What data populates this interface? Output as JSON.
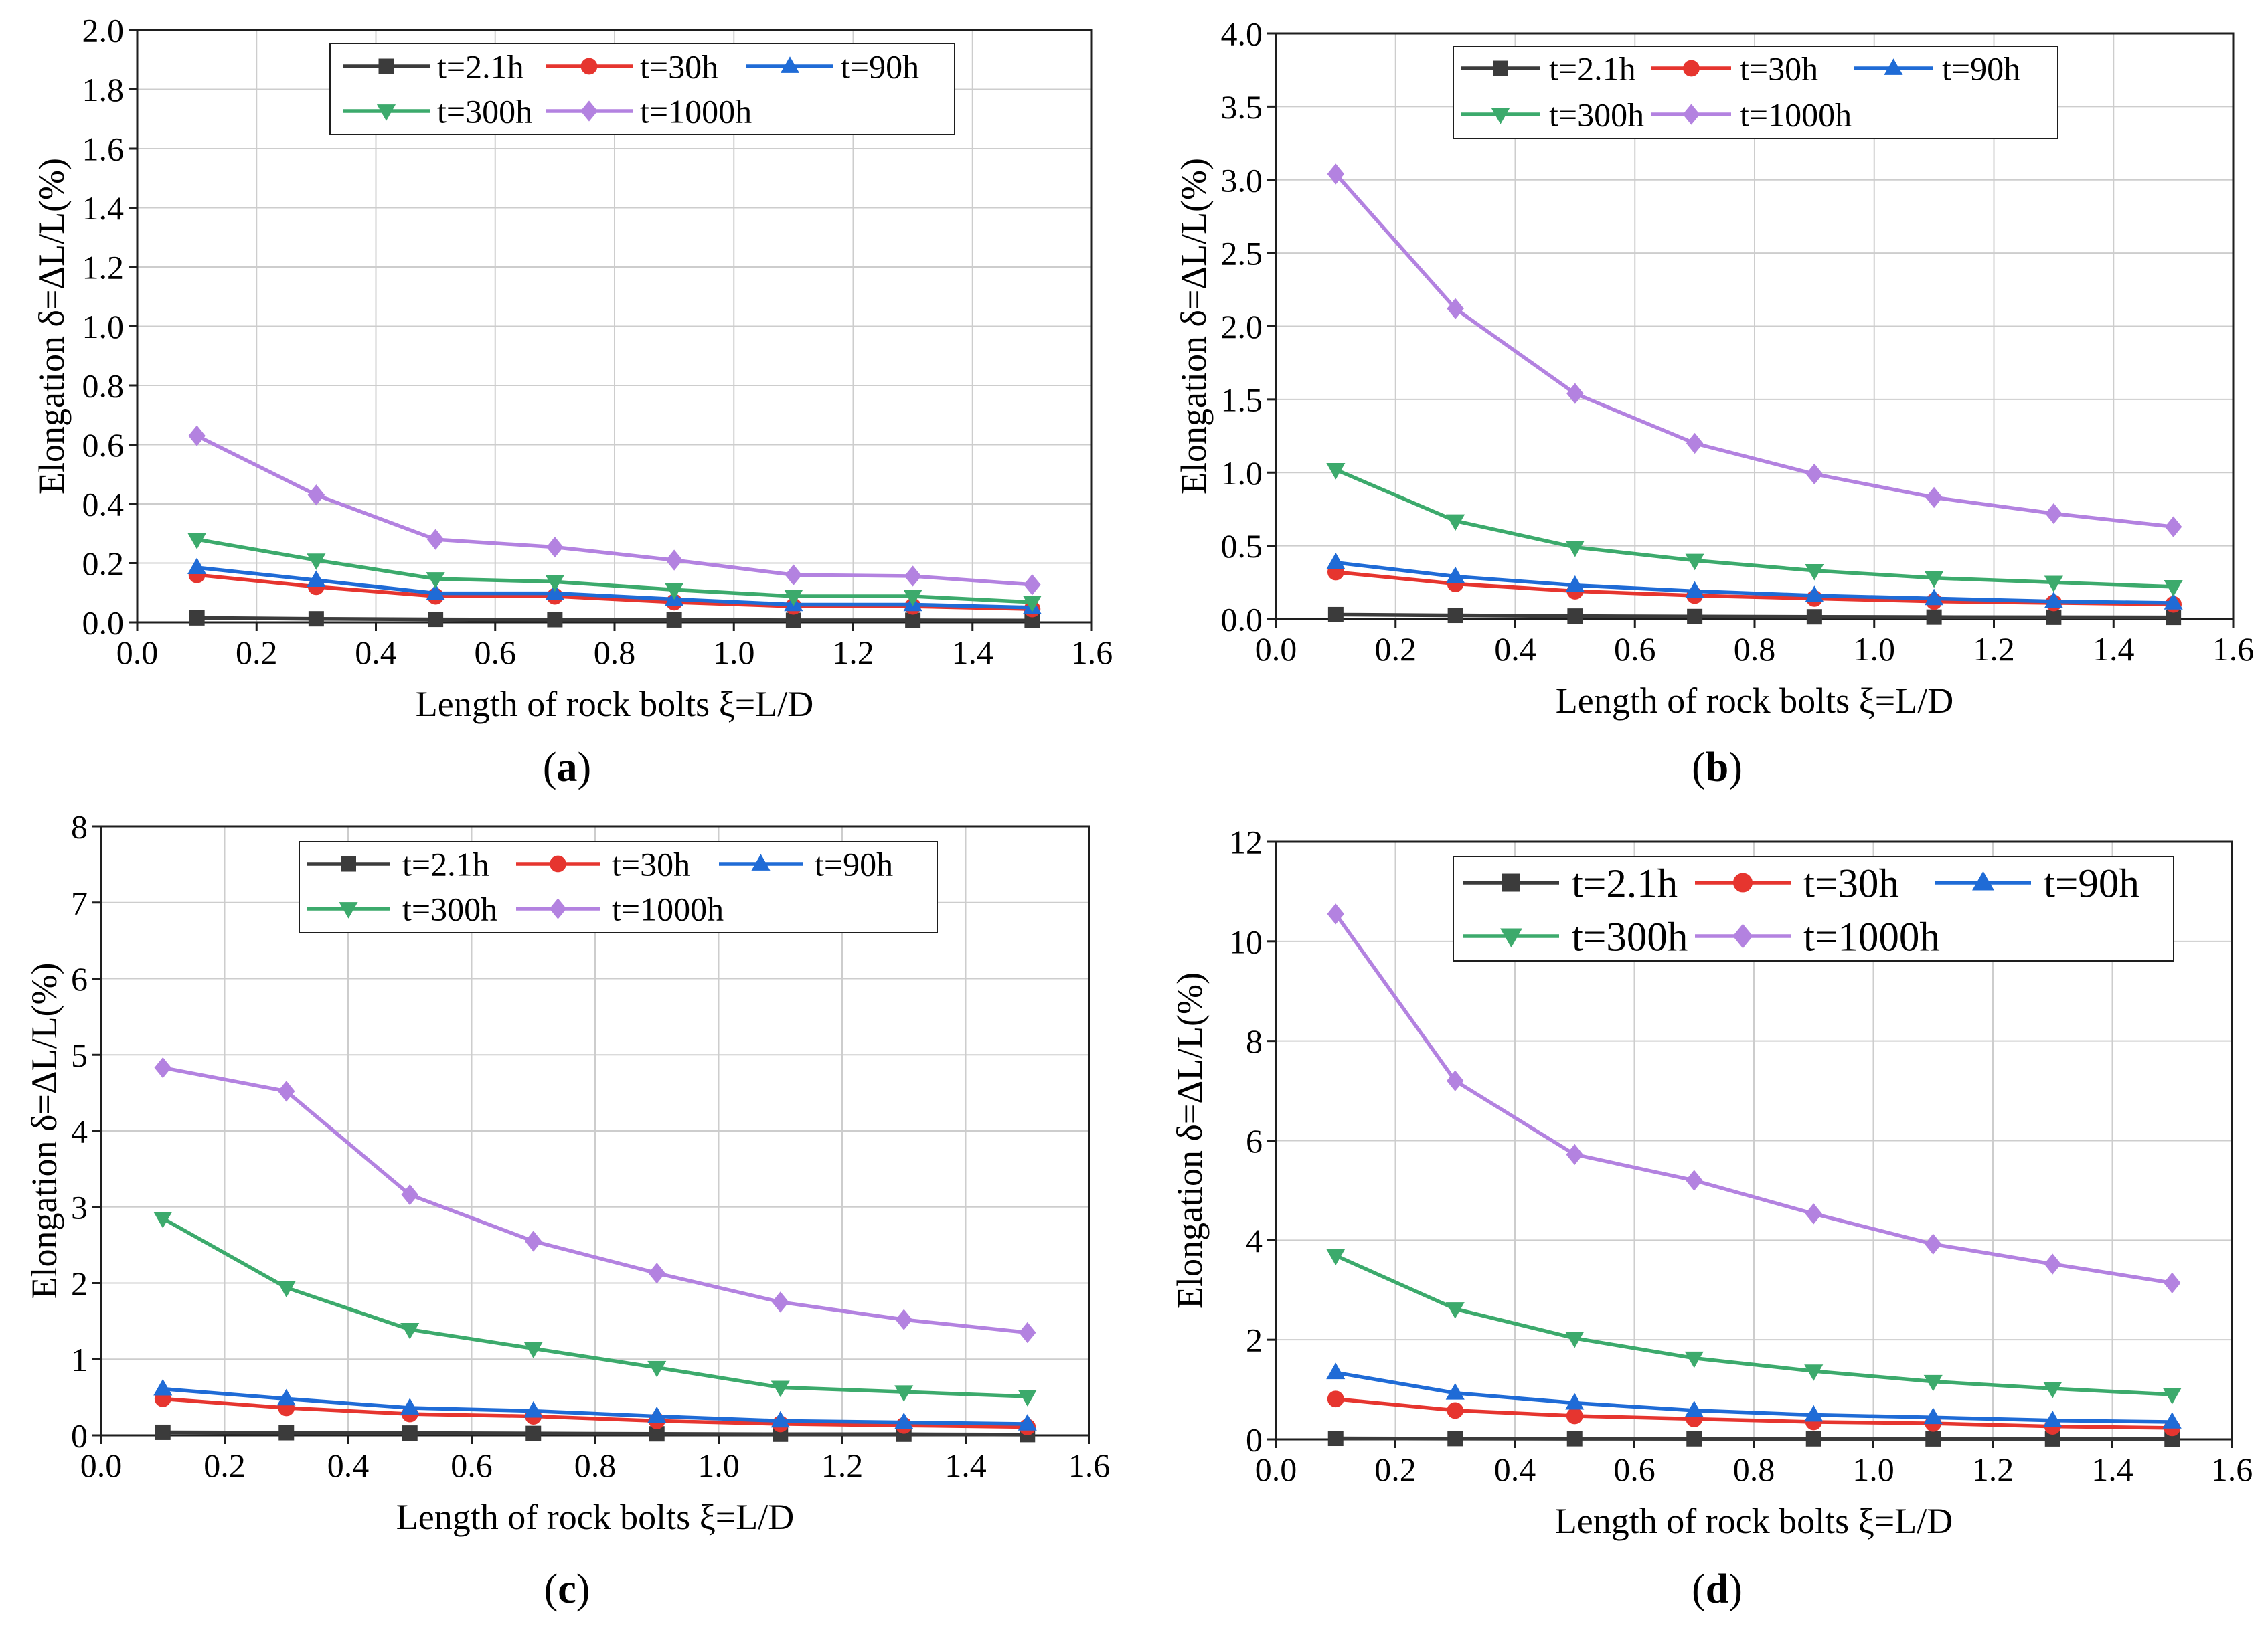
{
  "figure": {
    "background": "#ffffff"
  },
  "chart_data": [
    {
      "type": "line",
      "panel_label": {
        "open": "(",
        "letter": "a",
        "close": ")"
      },
      "xlabel": "Length of rock bolts ξ=L/D",
      "ylabel": "Elongation δ=ΔL/L(%)",
      "xlim": [
        0,
        1.6
      ],
      "ylim": [
        0,
        2.0
      ],
      "xticks": [
        0,
        0.2,
        0.4,
        0.6,
        0.8,
        1.0,
        1.2,
        1.4,
        1.6
      ],
      "xtick_labels": [
        "0.0",
        "0.2",
        "0.4",
        "0.6",
        "0.8",
        "1.0",
        "1.2",
        "1.4",
        "1.6"
      ],
      "yticks": [
        0,
        0.2,
        0.4,
        0.6,
        0.8,
        1.0,
        1.2,
        1.4,
        1.6,
        1.8,
        2.0
      ],
      "ytick_labels": [
        "0.0",
        "0.2",
        "0.4",
        "0.6",
        "0.8",
        "1.0",
        "1.2",
        "1.4",
        "1.6",
        "1.8",
        "2.0"
      ],
      "grid": true,
      "legend_position": "upper center",
      "x": [
        0.1,
        0.3,
        0.5,
        0.7,
        0.9,
        1.1,
        1.3,
        1.5
      ],
      "series": [
        {
          "name": "t=2.1h",
          "color": "#3b3b3b",
          "marker": "square",
          "values": [
            0.015,
            0.012,
            0.01,
            0.009,
            0.008,
            0.007,
            0.007,
            0.006
          ]
        },
        {
          "name": "t=30h",
          "color": "#e6352f",
          "marker": "circle",
          "values": [
            0.16,
            0.12,
            0.088,
            0.088,
            0.068,
            0.054,
            0.054,
            0.045
          ]
        },
        {
          "name": "t=90h",
          "color": "#1f6bd6",
          "marker": "triangle-up",
          "values": [
            0.185,
            0.142,
            0.098,
            0.098,
            0.078,
            0.06,
            0.06,
            0.05
          ]
        },
        {
          "name": "t=300h",
          "color": "#3caa6c",
          "marker": "triangle-down",
          "values": [
            0.28,
            0.21,
            0.147,
            0.137,
            0.11,
            0.088,
            0.088,
            0.068
          ]
        },
        {
          "name": "t=1000h",
          "color": "#b382e0",
          "marker": "diamond",
          "values": [
            0.63,
            0.43,
            0.28,
            0.254,
            0.21,
            0.16,
            0.156,
            0.127
          ]
        }
      ]
    },
    {
      "type": "line",
      "panel_label": {
        "open": "(",
        "letter": "b",
        "close": ")"
      },
      "xlabel": "Length of rock bolts ξ=L/D",
      "ylabel": "Elongation δ=ΔL/L(%)",
      "xlim": [
        0,
        1.6
      ],
      "ylim": [
        0,
        4.0
      ],
      "xticks": [
        0,
        0.2,
        0.4,
        0.6,
        0.8,
        1.0,
        1.2,
        1.4,
        1.6
      ],
      "xtick_labels": [
        "0.0",
        "0.2",
        "0.4",
        "0.6",
        "0.8",
        "1.0",
        "1.2",
        "1.4",
        "1.6"
      ],
      "yticks": [
        0,
        0.5,
        1.0,
        1.5,
        2.0,
        2.5,
        3.0,
        3.5,
        4.0
      ],
      "ytick_labels": [
        "0.0",
        "0.5",
        "1.0",
        "1.5",
        "2.0",
        "2.5",
        "3.0",
        "3.5",
        "4.0"
      ],
      "grid": true,
      "legend_position": "upper center",
      "x": [
        0.1,
        0.3,
        0.5,
        0.7,
        0.9,
        1.1,
        1.3,
        1.5
      ],
      "series": [
        {
          "name": "t=2.1h",
          "color": "#3b3b3b",
          "marker": "square",
          "values": [
            0.03,
            0.025,
            0.02,
            0.017,
            0.015,
            0.013,
            0.012,
            0.011
          ]
        },
        {
          "name": "t=30h",
          "color": "#e6352f",
          "marker": "circle",
          "values": [
            0.32,
            0.24,
            0.19,
            0.16,
            0.14,
            0.12,
            0.11,
            0.1
          ]
        },
        {
          "name": "t=90h",
          "color": "#1f6bd6",
          "marker": "triangle-up",
          "values": [
            0.385,
            0.29,
            0.23,
            0.19,
            0.16,
            0.14,
            0.12,
            0.11
          ]
        },
        {
          "name": "t=300h",
          "color": "#3caa6c",
          "marker": "triangle-down",
          "values": [
            1.02,
            0.67,
            0.49,
            0.4,
            0.33,
            0.28,
            0.25,
            0.22
          ]
        },
        {
          "name": "t=1000h",
          "color": "#b382e0",
          "marker": "diamond",
          "values": [
            3.04,
            2.12,
            1.54,
            1.2,
            0.99,
            0.83,
            0.72,
            0.63
          ]
        }
      ]
    },
    {
      "type": "line",
      "panel_label": {
        "open": "(",
        "letter": "c",
        "close": ")"
      },
      "xlabel": "Length of rock bolts ξ=L/D",
      "ylabel": "Elongation δ=ΔL/L(%)",
      "xlim": [
        0,
        1.6
      ],
      "ylim": [
        0,
        8
      ],
      "xticks": [
        0,
        0.2,
        0.4,
        0.6,
        0.8,
        1.0,
        1.2,
        1.4,
        1.6
      ],
      "xtick_labels": [
        "0.0",
        "0.2",
        "0.4",
        "0.6",
        "0.8",
        "1.0",
        "1.2",
        "1.4",
        "1.6"
      ],
      "yticks": [
        0,
        1,
        2,
        3,
        4,
        5,
        6,
        7,
        8
      ],
      "ytick_labels": [
        "0",
        "1",
        "2",
        "3",
        "4",
        "5",
        "6",
        "7",
        "8"
      ],
      "grid": true,
      "legend_position": "upper center",
      "x": [
        0.1,
        0.3,
        0.5,
        0.7,
        0.9,
        1.1,
        1.3,
        1.5
      ],
      "series": [
        {
          "name": "t=2.1h",
          "color": "#3b3b3b",
          "marker": "square",
          "values": [
            0.04,
            0.035,
            0.03,
            0.025,
            0.02,
            0.015,
            0.015,
            0.01
          ]
        },
        {
          "name": "t=30h",
          "color": "#e6352f",
          "marker": "circle",
          "values": [
            0.48,
            0.36,
            0.28,
            0.25,
            0.19,
            0.15,
            0.13,
            0.11
          ]
        },
        {
          "name": "t=90h",
          "color": "#1f6bd6",
          "marker": "triangle-up",
          "values": [
            0.61,
            0.48,
            0.36,
            0.32,
            0.25,
            0.19,
            0.17,
            0.15
          ]
        },
        {
          "name": "t=300h",
          "color": "#3caa6c",
          "marker": "triangle-down",
          "values": [
            2.85,
            1.94,
            1.39,
            1.14,
            0.89,
            0.63,
            0.57,
            0.51
          ]
        },
        {
          "name": "t=1000h",
          "color": "#b382e0",
          "marker": "diamond",
          "values": [
            4.83,
            4.52,
            3.16,
            2.55,
            2.13,
            1.75,
            1.52,
            1.35
          ]
        }
      ]
    },
    {
      "type": "line",
      "panel_label": {
        "open": "(",
        "letter": "d",
        "close": ")"
      },
      "xlabel": "Length of rock bolts ξ=L/D",
      "ylabel": "Elongation δ=ΔL/L(%)",
      "xlim": [
        0,
        1.6
      ],
      "ylim": [
        0,
        12
      ],
      "xticks": [
        0,
        0.2,
        0.4,
        0.6,
        0.8,
        1.0,
        1.2,
        1.4,
        1.6
      ],
      "xtick_labels": [
        "0.0",
        "0.2",
        "0.4",
        "0.6",
        "0.8",
        "1.0",
        "1.2",
        "1.4",
        "1.6"
      ],
      "yticks": [
        0,
        2,
        4,
        6,
        8,
        10,
        12
      ],
      "ytick_labels": [
        "0",
        "2",
        "4",
        "6",
        "8",
        "10",
        "12"
      ],
      "grid": true,
      "legend_position": "upper center",
      "x": [
        0.1,
        0.3,
        0.5,
        0.7,
        0.9,
        1.1,
        1.3,
        1.5
      ],
      "series": [
        {
          "name": "t=2.1h",
          "color": "#3b3b3b",
          "marker": "square",
          "values": [
            0.02,
            0.015,
            0.012,
            0.01,
            0.01,
            0.008,
            0.008,
            0.006
          ]
        },
        {
          "name": "t=30h",
          "color": "#e6352f",
          "marker": "circle",
          "values": [
            0.81,
            0.58,
            0.47,
            0.41,
            0.35,
            0.32,
            0.26,
            0.23
          ]
        },
        {
          "name": "t=90h",
          "color": "#1f6bd6",
          "marker": "triangle-up",
          "values": [
            1.34,
            0.93,
            0.73,
            0.58,
            0.49,
            0.44,
            0.38,
            0.35
          ]
        },
        {
          "name": "t=300h",
          "color": "#3caa6c",
          "marker": "triangle-down",
          "values": [
            3.69,
            2.62,
            2.03,
            1.63,
            1.37,
            1.16,
            1.02,
            0.9
          ]
        },
        {
          "name": "t=1000h",
          "color": "#b382e0",
          "marker": "diamond",
          "values": [
            10.55,
            7.2,
            5.72,
            5.2,
            4.53,
            3.92,
            3.52,
            3.14
          ]
        }
      ]
    }
  ]
}
